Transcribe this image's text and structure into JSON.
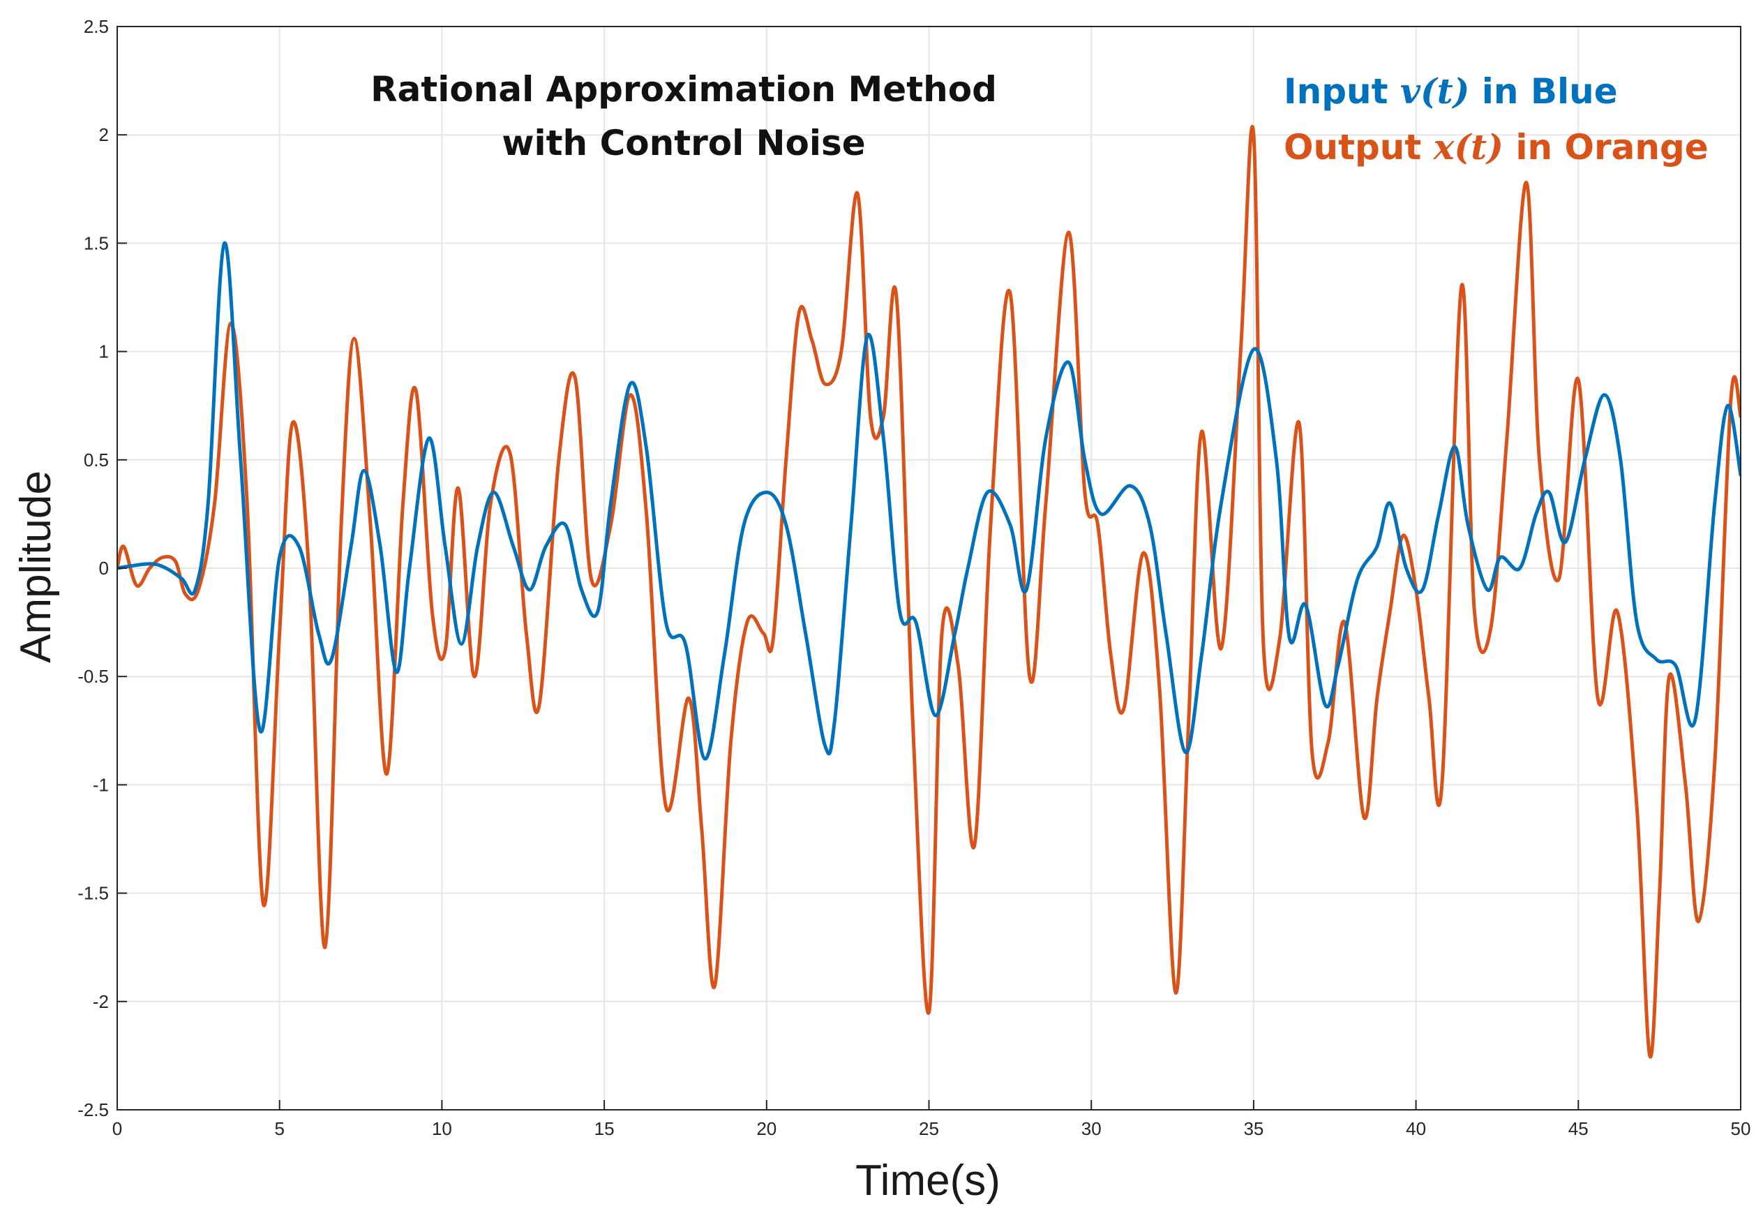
{
  "chart_data": {
    "type": "line",
    "title": [
      "Rational Approximation Method",
      "with Control Noise"
    ],
    "xlabel": "Time(s)",
    "ylabel": "Amplitude",
    "xlim": [
      0,
      50
    ],
    "ylim": [
      -2.5,
      2.5
    ],
    "grid": true,
    "legend_placement": "top-right",
    "xticks": [
      0,
      5,
      10,
      15,
      20,
      25,
      30,
      35,
      40,
      45,
      50
    ],
    "xtick_labels": [
      "0",
      "5",
      "10",
      "15",
      "20",
      "25",
      "30",
      "35",
      "40",
      "45",
      "50"
    ],
    "yticks": [
      2.5,
      2,
      1.5,
      1,
      0.5,
      0,
      -0.5,
      -1,
      -1.5,
      -2,
      -2.5
    ],
    "ytick_labels": [
      "2.5",
      "2",
      "1.5",
      "1",
      "0.5",
      "0",
      "-0.5",
      "-1",
      "-1.5",
      "-2",
      "-2.5"
    ],
    "legend": [
      {
        "prefix": "Input ",
        "math": "v(t)",
        "suffix": " in Blue",
        "color": "#0072BD"
      },
      {
        "prefix": "Output ",
        "math": "x(t)",
        "suffix": " in Orange",
        "color": "#D95319"
      }
    ],
    "series": [
      {
        "name": "Input v(t)",
        "color": "#0072BD",
        "x": [
          0,
          1,
          1.5,
          2,
          2.4,
          2.8,
          3.3,
          3.8,
          4.4,
          5.0,
          5.6,
          6.2,
          6.6,
          7.2,
          7.6,
          8.1,
          8.6,
          9.0,
          9.6,
          10.1,
          10.6,
          11.1,
          11.6,
          12.2,
          12.7,
          13.2,
          13.8,
          14.3,
          14.8,
          15.2,
          15.8,
          16.3,
          16.9,
          17.5,
          18.1,
          18.7,
          19.3,
          20.0,
          20.6,
          21.2,
          21.8,
          22.1,
          22.6,
          23.1,
          23.6,
          24.1,
          24.6,
          25.2,
          25.8,
          26.2,
          26.8,
          27.5,
          28.0,
          28.6,
          29.3,
          29.8,
          30.3,
          31.2,
          31.8,
          32.3,
          32.9,
          33.4,
          34.0,
          35.0,
          35.7,
          36.1,
          36.6,
          37.2,
          37.6,
          38.2,
          38.8,
          39.2,
          39.7,
          40.2,
          40.7,
          41.2,
          41.6,
          42.2,
          42.6,
          43.2,
          43.7,
          44.1,
          44.6,
          45.2,
          45.8,
          46.3,
          46.8,
          47.4,
          48.0,
          48.6,
          49.2,
          49.6,
          50.0
        ],
        "values": [
          0,
          0.02,
          0.0,
          -0.05,
          -0.1,
          0.3,
          1.5,
          0.5,
          -0.75,
          0.05,
          0.1,
          -0.3,
          -0.42,
          0.1,
          0.45,
          0.1,
          -0.48,
          0.0,
          0.6,
          0.1,
          -0.35,
          0.1,
          0.35,
          0.1,
          -0.1,
          0.1,
          0.2,
          -0.1,
          -0.2,
          0.3,
          0.85,
          0.55,
          -0.25,
          -0.35,
          -0.88,
          -0.4,
          0.2,
          0.35,
          0.2,
          -0.3,
          -0.82,
          -0.7,
          0.2,
          1.07,
          0.6,
          -0.2,
          -0.25,
          -0.68,
          -0.3,
          0.0,
          0.35,
          0.2,
          -0.1,
          0.6,
          0.95,
          0.5,
          0.25,
          0.38,
          0.2,
          -0.3,
          -0.85,
          -0.4,
          0.3,
          1.01,
          0.5,
          -0.32,
          -0.17,
          -0.63,
          -0.45,
          -0.05,
          0.1,
          0.3,
          0.0,
          -0.1,
          0.25,
          0.56,
          0.2,
          -0.1,
          0.05,
          0.0,
          0.25,
          0.35,
          0.12,
          0.5,
          0.8,
          0.5,
          -0.25,
          -0.42,
          -0.45,
          -0.7,
          0.3,
          0.75,
          0.43
        ]
      },
      {
        "name": "Output x(t)",
        "color": "#D95319",
        "x": [
          0,
          0.2,
          0.6,
          1.0,
          1.4,
          1.8,
          2.1,
          2.5,
          3.0,
          3.5,
          4.0,
          4.5,
          5.0,
          5.4,
          5.9,
          6.4,
          6.9,
          7.3,
          7.8,
          8.3,
          8.8,
          9.2,
          9.7,
          10.1,
          10.5,
          11.0,
          11.5,
          12.1,
          12.6,
          13.0,
          13.6,
          14.1,
          14.6,
          15.2,
          15.8,
          16.3,
          16.9,
          17.6,
          18.0,
          18.4,
          18.9,
          19.4,
          19.9,
          20.2,
          20.6,
          21.0,
          21.4,
          21.8,
          22.3,
          22.8,
          23.2,
          23.6,
          24.0,
          24.5,
          25.0,
          25.4,
          25.9,
          26.4,
          26.9,
          27.5,
          28.1,
          28.6,
          29.3,
          29.8,
          30.2,
          30.6,
          31.0,
          31.6,
          32.1,
          32.6,
          33.0,
          33.4,
          34.0,
          34.6,
          35.0,
          35.3,
          35.8,
          36.4,
          36.8,
          37.3,
          37.8,
          38.4,
          38.8,
          39.2,
          39.6,
          40.0,
          40.4,
          40.8,
          41.4,
          41.8,
          42.3,
          42.8,
          43.4,
          43.8,
          44.4,
          45.0,
          45.6,
          46.2,
          46.8,
          47.2,
          47.5,
          47.8,
          48.3,
          48.7,
          49.2,
          49.7,
          50.0
        ],
        "values": [
          0,
          0.1,
          -0.08,
          0.0,
          0.05,
          0.03,
          -0.12,
          -0.1,
          0.3,
          1.13,
          0.3,
          -1.55,
          -0.3,
          0.67,
          0.0,
          -1.75,
          0.2,
          1.06,
          0.2,
          -0.95,
          0.3,
          0.82,
          -0.2,
          -0.38,
          0.37,
          -0.5,
          0.3,
          0.53,
          -0.3,
          -0.63,
          0.5,
          0.88,
          -0.05,
          0.2,
          0.8,
          0.25,
          -1.1,
          -0.6,
          -1.2,
          -1.93,
          -0.8,
          -0.25,
          -0.3,
          -0.33,
          0.5,
          1.18,
          1.05,
          0.85,
          1.0,
          1.73,
          0.7,
          0.7,
          1.25,
          -0.7,
          -2.05,
          -0.3,
          -0.45,
          -1.28,
          0.2,
          1.27,
          -0.5,
          0.3,
          1.55,
          0.35,
          0.2,
          -0.4,
          -0.65,
          0.07,
          -0.55,
          -1.96,
          -0.7,
          0.63,
          -0.37,
          1.0,
          2.0,
          -0.35,
          -0.33,
          0.67,
          -0.85,
          -0.8,
          -0.25,
          -1.15,
          -0.6,
          -0.2,
          0.15,
          -0.1,
          -0.6,
          -1.0,
          1.3,
          -0.2,
          -0.28,
          0.6,
          1.78,
          0.5,
          -0.05,
          0.87,
          -0.6,
          -0.2,
          -1.1,
          -2.25,
          -1.5,
          -0.5,
          -1.0,
          -1.63,
          -0.9,
          0.78,
          0.7
        ]
      }
    ]
  }
}
